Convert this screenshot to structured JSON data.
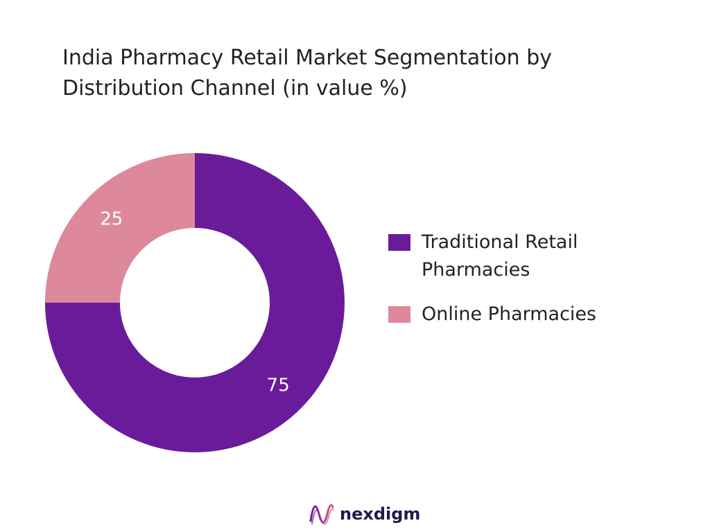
{
  "title_lines": [
    "India Pharmacy Retail Market Segmentation by",
    "Distribution Channel (in value %)"
  ],
  "chart_data": {
    "type": "pie",
    "donut": true,
    "title": "India Pharmacy Retail Market Segmentation by Distribution Channel (in value %)",
    "categories": [
      "Traditional Retail Pharmacies",
      "Online Pharmacies"
    ],
    "values": [
      75,
      25
    ],
    "colors": [
      "#6a1b9a",
      "#de889c"
    ],
    "legend_position": "right"
  },
  "legend": [
    {
      "lines": [
        "Traditional Retail",
        "Pharmacies"
      ],
      "color": "#6a1b9a"
    },
    {
      "lines": [
        "Online Pharmacies"
      ],
      "color": "#de889c"
    }
  ],
  "logo": {
    "text": "nexdigm",
    "icon": "nexdigm-wave-logo-icon",
    "colors": [
      "#6a1b9a",
      "#e05a8a"
    ]
  }
}
